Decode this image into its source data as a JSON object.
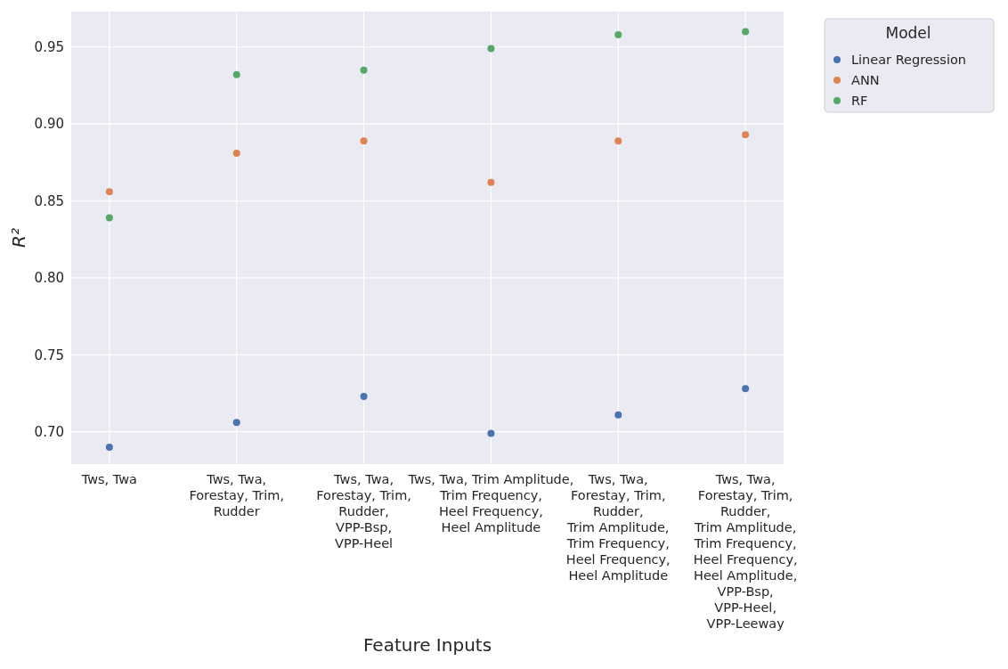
{
  "chart_data": {
    "type": "scatter",
    "xlabel": "Feature Inputs",
    "ylabel": "R²",
    "legend_title": "Model",
    "categories": [
      "Tws, Twa",
      "Tws, Twa,\nForestay, Trim,\nRudder",
      "Tws, Twa,\nForestay, Trim,\nRudder,\nVPP-Bsp,\nVPP-Heel",
      "Tws, Twa, Trim Amplitude,\nTrim Frequency,\nHeel Frequency,\nHeel Amplitude",
      "Tws, Twa,\nForestay, Trim,\nRudder,\nTrim Amplitude,\nTrim Frequency,\nHeel Frequency,\nHeel Amplitude",
      "Tws, Twa,\nForestay, Trim,\nRudder,\nTrim Amplitude,\nTrim Frequency,\nHeel Frequency,\nHeel Amplitude,\nVPP-Bsp,\nVPP-Heel,\nVPP-Leeway"
    ],
    "series": [
      {
        "name": "Linear Regression",
        "color": "#4c72b0",
        "values": [
          0.69,
          0.706,
          0.723,
          0.699,
          0.711,
          0.728
        ]
      },
      {
        "name": "ANN",
        "color": "#dd8452",
        "values": [
          0.856,
          0.881,
          0.889,
          0.862,
          0.889,
          0.893
        ]
      },
      {
        "name": "RF",
        "color": "#55a868",
        "values": [
          0.839,
          0.932,
          0.935,
          0.949,
          0.958,
          0.96
        ]
      }
    ],
    "ylim": [
      0.679,
      0.973
    ],
    "yticks": [
      {
        "value": 0.7,
        "label": "0.70"
      },
      0.75,
      {
        "value": 0.8,
        "label": "0.80"
      },
      0.85,
      {
        "value": 0.9,
        "label": "0.90"
      },
      0.95
    ],
    "grid": true,
    "legend": "top right",
    "marker": "circle"
  }
}
